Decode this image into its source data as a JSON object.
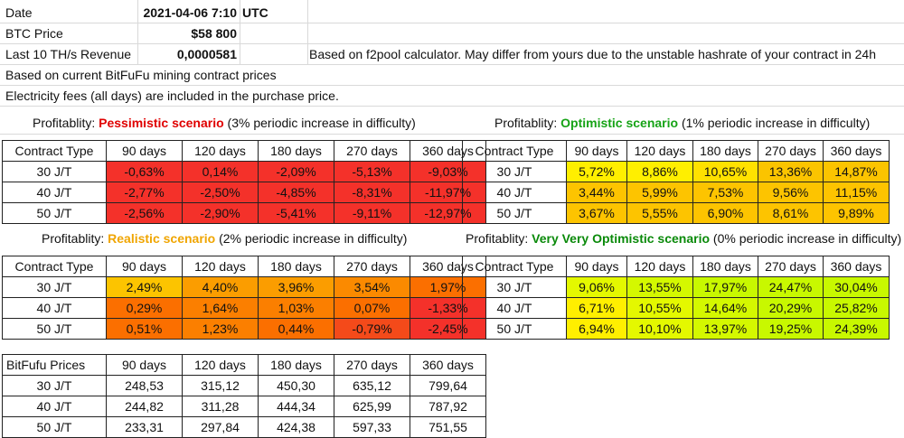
{
  "header": {
    "date_label": "Date",
    "date_value": "2021-04-06 7:10",
    "date_tz": "UTC",
    "btc_label": "BTC Price",
    "btc_value": "$58 800",
    "revenue_label": "Last 10 TH/s Revenue",
    "revenue_value": "0,0000581",
    "revenue_note": "Based on f2pool calculator. May differ from yours due to the unstable hashrate of your contract in 24h",
    "note_prices": "Based on current BitFuFu mining contract prices",
    "note_fees": "Electricity fees (all days) are included in the purchase price."
  },
  "columns": [
    "90 days",
    "120 days",
    "180 days",
    "270 days",
    "360 days"
  ],
  "rows": [
    "30 J/T",
    "40 J/T",
    "50 J/T"
  ],
  "contract_type_label": "Contract Type",
  "prices_label": "BitFufu Prices",
  "scenarios": {
    "pessimistic": {
      "prefix": "Profitablity: ",
      "name": "Pessimistic scenario",
      "suffix": " (3% periodic increase in difficulty)",
      "name_color": "#e00000",
      "values": [
        [
          "-0,63%",
          "0,14%",
          "-2,09%",
          "-5,13%",
          "-9,03%"
        ],
        [
          "-2,77%",
          "-2,50%",
          "-4,85%",
          "-8,31%",
          "-11,97%"
        ],
        [
          "-2,56%",
          "-2,90%",
          "-5,41%",
          "-9,11%",
          "-12,97%"
        ]
      ],
      "colors": [
        [
          "#f4312a",
          "#f4312a",
          "#f4312a",
          "#f4312a",
          "#f4312a"
        ],
        [
          "#f4312a",
          "#f4312a",
          "#f4312a",
          "#f4312a",
          "#f4312a"
        ],
        [
          "#f4312a",
          "#f4312a",
          "#f4312a",
          "#f4312a",
          "#f4312a"
        ]
      ]
    },
    "optimistic": {
      "prefix": "Profitablity: ",
      "name": "Optimistic scenario",
      "suffix": " (1% periodic increase in difficulty)",
      "name_color": "#16a316",
      "values": [
        [
          "5,72%",
          "8,86%",
          "10,65%",
          "13,36%",
          "14,87%"
        ],
        [
          "3,44%",
          "5,99%",
          "7,53%",
          "9,56%",
          "11,15%"
        ],
        [
          "3,67%",
          "5,55%",
          "6,90%",
          "8,61%",
          "9,89%"
        ]
      ],
      "colors": [
        [
          "#ffef00",
          "#ffef00",
          "#ffe100",
          "#fbc400",
          "#fbc400"
        ],
        [
          "#fdc400",
          "#fdc400",
          "#fdc400",
          "#fdc400",
          "#fdc400"
        ],
        [
          "#fdc400",
          "#fdc400",
          "#fdc400",
          "#fdc400",
          "#fdc400"
        ]
      ]
    },
    "realistic": {
      "prefix": "Profitablity: ",
      "name": "Realistic scenario",
      "suffix": " (2% periodic increase in difficulty)",
      "name_color": "#f0a500",
      "values": [
        [
          "2,49%",
          "4,40%",
          "3,96%",
          "3,54%",
          "1,97%"
        ],
        [
          "0,29%",
          "1,64%",
          "1,03%",
          "0,07%",
          "-1,33%"
        ],
        [
          "0,51%",
          "1,23%",
          "0,44%",
          "-0,79%",
          "-2,45%"
        ]
      ],
      "colors": [
        [
          "#fcc400",
          "#fb9d00",
          "#fb9d00",
          "#fb8a00",
          "#fb6f00"
        ],
        [
          "#fb6f00",
          "#fb7f00",
          "#fb7f00",
          "#fb6f00",
          "#f4312a"
        ],
        [
          "#fb6f00",
          "#fb7f00",
          "#fb6f00",
          "#f44a1a",
          "#f4312a"
        ]
      ]
    },
    "very_optimistic": {
      "prefix": "Profitablity: ",
      "name": "Very Very Optimistic scenario",
      "suffix": " (0% periodic increase in difficulty)",
      "name_color": "#0a8a0a",
      "values": [
        [
          "9,06%",
          "13,55%",
          "17,97%",
          "24,47%",
          "30,04%"
        ],
        [
          "6,71%",
          "10,55%",
          "14,64%",
          "20,29%",
          "25,82%"
        ],
        [
          "6,94%",
          "10,10%",
          "13,97%",
          "19,25%",
          "24,39%"
        ]
      ],
      "colors": [
        [
          "#e4f800",
          "#d4f800",
          "#c8f800",
          "#c8f800",
          "#c8f800"
        ],
        [
          "#ffef00",
          "#e4f800",
          "#d4f800",
          "#c8f800",
          "#c8f800"
        ],
        [
          "#ffef00",
          "#e4f800",
          "#d4f800",
          "#c8f800",
          "#c8f800"
        ]
      ]
    }
  },
  "prices": [
    [
      "248,53",
      "315,12",
      "450,30",
      "635,12",
      "799,64"
    ],
    [
      "244,82",
      "311,28",
      "444,34",
      "625,99",
      "787,92"
    ],
    [
      "233,31",
      "297,84",
      "424,38",
      "597,33",
      "751,55"
    ]
  ]
}
